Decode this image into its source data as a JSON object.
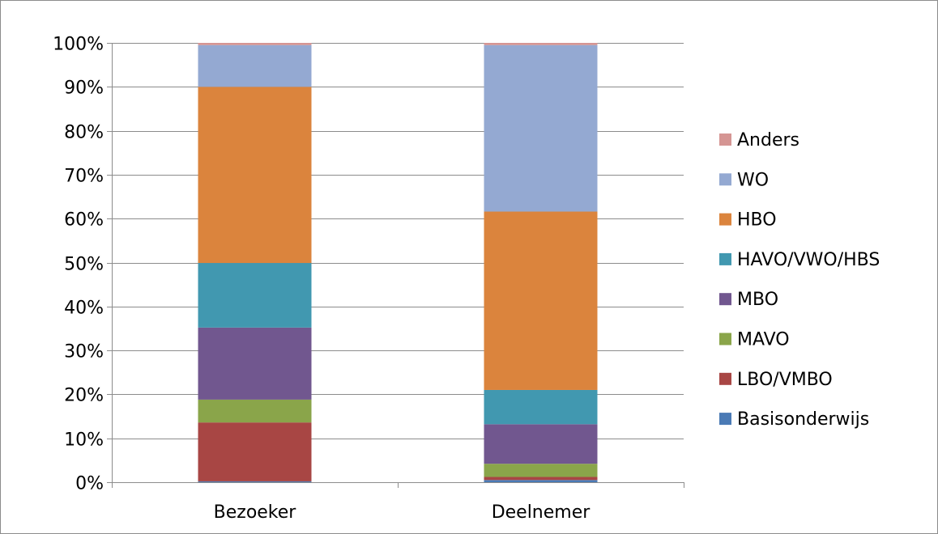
{
  "chart_data": {
    "type": "bar",
    "stacked": true,
    "percent_stacked": true,
    "title": "",
    "xlabel": "",
    "ylabel": "",
    "ylim": [
      0,
      100
    ],
    "y_ticks": [
      "0%",
      "10%",
      "20%",
      "30%",
      "40%",
      "50%",
      "60%",
      "70%",
      "80%",
      "90%",
      "100%"
    ],
    "categories": [
      "Bezoeker",
      "Deelnemer"
    ],
    "series": [
      {
        "name": "Basisonderwijs",
        "color": "#4a7ab5",
        "values": [
          0.2,
          0.5
        ]
      },
      {
        "name": "LBO/VMBO",
        "color": "#a84644",
        "values": [
          13.4,
          0.7
        ]
      },
      {
        "name": "MAVO",
        "color": "#8aa54a",
        "values": [
          5.2,
          3.0
        ]
      },
      {
        "name": "MBO",
        "color": "#71578f",
        "values": [
          16.4,
          9.0
        ]
      },
      {
        "name": "HAVO/VWO/HBS",
        "color": "#4198b0",
        "values": [
          14.7,
          7.8
        ]
      },
      {
        "name": "HBO",
        "color": "#db843d",
        "values": [
          40.1,
          40.6
        ]
      },
      {
        "name": "WO",
        "color": "#94a9d2",
        "values": [
          9.5,
          37.9
        ]
      },
      {
        "name": "Anders",
        "color": "#d59593",
        "values": [
          0.5,
          0.5
        ]
      }
    ],
    "grid": true,
    "legend": "right"
  }
}
